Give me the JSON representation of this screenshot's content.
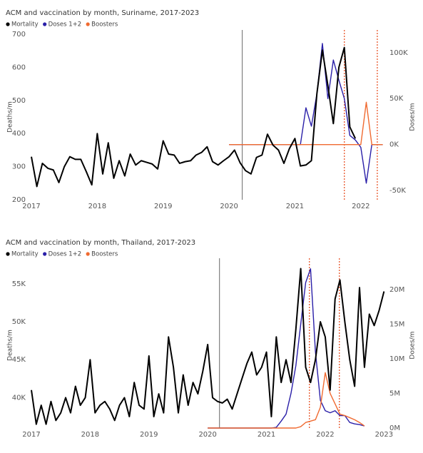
{
  "chart_data": [
    {
      "type": "line",
      "title": "ACM and vaccination by month, Suriname, 2017-2023",
      "y_label": "Deaths/m",
      "y2_label": "Doses/m",
      "xlim": [
        2017,
        2022.37
      ],
      "xticks": [
        2017,
        2018,
        2019,
        2020,
        2021,
        2022
      ],
      "ylim": [
        200,
        700
      ],
      "yticks": [
        200,
        300,
        400,
        500,
        600,
        700
      ],
      "y2lim": [
        -60000,
        120000
      ],
      "y2ticks": [
        {
          "value": 100000,
          "label": "100K"
        },
        {
          "value": 50000,
          "label": "50K"
        },
        {
          "value": 0,
          "label": "0K"
        },
        {
          "value": -50000,
          "label": "-50K"
        }
      ],
      "grid": false,
      "vlines": [
        {
          "x": 2020.2,
          "color": "#808080",
          "style": "solid"
        },
        {
          "x": 2021.75,
          "color": "#e8552a",
          "style": "dotted"
        },
        {
          "x": 2022.25,
          "color": "#e8552a",
          "style": "dotted"
        }
      ],
      "x": [
        2017,
        2017.083,
        2017.167,
        2017.25,
        2017.333,
        2017.417,
        2017.5,
        2017.583,
        2017.667,
        2017.75,
        2017.833,
        2017.917,
        2018,
        2018.083,
        2018.167,
        2018.25,
        2018.333,
        2018.417,
        2018.5,
        2018.583,
        2018.667,
        2018.75,
        2018.833,
        2018.917,
        2019,
        2019.083,
        2019.167,
        2019.25,
        2019.333,
        2019.417,
        2019.5,
        2019.583,
        2019.667,
        2019.75,
        2019.833,
        2019.917,
        2020,
        2020.083,
        2020.167,
        2020.25,
        2020.333,
        2020.417,
        2020.5,
        2020.583,
        2020.667,
        2020.75,
        2020.833,
        2020.917,
        2021,
        2021.083,
        2021.167,
        2021.25,
        2021.333,
        2021.417,
        2021.5,
        2021.583,
        2021.667,
        2021.75,
        2021.833,
        2021.917,
        2022,
        2022.083,
        2022.167,
        2022.25,
        2022.333
      ],
      "series": [
        {
          "name": "Mortality",
          "color": "#000000",
          "axis": "y",
          "values": [
            330,
            240,
            310,
            295,
            290,
            252,
            300,
            330,
            322,
            322,
            285,
            245,
            400,
            278,
            372,
            265,
            318,
            272,
            338,
            305,
            318,
            313,
            308,
            293,
            378,
            338,
            335,
            310,
            315,
            318,
            335,
            343,
            360,
            315,
            305,
            318,
            330,
            350,
            312,
            288,
            278,
            328,
            335,
            398,
            365,
            350,
            310,
            355,
            385,
            302,
            305,
            318,
            520,
            652,
            545,
            430,
            600,
            660,
            420,
            385,
            null,
            null,
            null,
            null,
            null
          ]
        },
        {
          "name": "Doses 1+2",
          "color": "#2a1fa8",
          "axis": "y2",
          "values": [
            null,
            null,
            null,
            null,
            null,
            null,
            null,
            null,
            null,
            null,
            null,
            null,
            null,
            null,
            null,
            null,
            null,
            null,
            null,
            null,
            null,
            null,
            null,
            null,
            null,
            null,
            null,
            null,
            null,
            null,
            null,
            null,
            null,
            null,
            null,
            null,
            0,
            0,
            0,
            0,
            0,
            0,
            0,
            0,
            0,
            0,
            0,
            0,
            0,
            0,
            40000,
            20000,
            55000,
            110000,
            50000,
            92000,
            70000,
            50000,
            10000,
            5000,
            -3000,
            -42000,
            0,
            0,
            0
          ]
        },
        {
          "name": "Boosters",
          "color": "#f06a30",
          "axis": "y2",
          "values": [
            null,
            null,
            null,
            null,
            null,
            null,
            null,
            null,
            null,
            null,
            null,
            null,
            null,
            null,
            null,
            null,
            null,
            null,
            null,
            null,
            null,
            null,
            null,
            null,
            null,
            null,
            null,
            null,
            null,
            null,
            null,
            null,
            null,
            null,
            null,
            null,
            0,
            0,
            0,
            0,
            0,
            0,
            0,
            0,
            0,
            0,
            0,
            0,
            0,
            0,
            0,
            0,
            0,
            0,
            0,
            0,
            0,
            0,
            0,
            0,
            0,
            46000,
            0,
            0,
            0
          ]
        }
      ]
    },
    {
      "type": "line",
      "title": "ACM and vaccination by month, Thailand, 2017-2023",
      "y_label": "Deaths/m",
      "y2_label": "Doses/m",
      "xlim": [
        2017,
        2023.02
      ],
      "xticks": [
        2017,
        2018,
        2019,
        2020,
        2021,
        2022,
        2023
      ],
      "ylim": [
        36000,
        57800
      ],
      "yticks": [
        {
          "value": 40000,
          "label": "40K"
        },
        {
          "value": 45000,
          "label": "45K"
        },
        {
          "value": 50000,
          "label": "50K"
        },
        {
          "value": 55000,
          "label": "55K"
        }
      ],
      "y2lim": [
        0,
        23900000
      ],
      "y2ticks": [
        {
          "value": 0,
          "label": "0M"
        },
        {
          "value": 5000000,
          "label": "5M"
        },
        {
          "value": 10000000,
          "label": "10M"
        },
        {
          "value": 15000000,
          "label": "15M"
        },
        {
          "value": 20000000,
          "label": "20M"
        }
      ],
      "grid": false,
      "vlines": [
        {
          "x": 2020.2,
          "color": "#808080",
          "style": "solid"
        },
        {
          "x": 2021.73,
          "color": "#e8552a",
          "style": "dotted"
        },
        {
          "x": 2022.24,
          "color": "#e8552a",
          "style": "dotted"
        }
      ],
      "x": [
        2017,
        2017.083,
        2017.167,
        2017.25,
        2017.333,
        2017.417,
        2017.5,
        2017.583,
        2017.667,
        2017.75,
        2017.833,
        2017.917,
        2018,
        2018.083,
        2018.167,
        2018.25,
        2018.333,
        2018.417,
        2018.5,
        2018.583,
        2018.667,
        2018.75,
        2018.833,
        2018.917,
        2019,
        2019.083,
        2019.167,
        2019.25,
        2019.333,
        2019.417,
        2019.5,
        2019.583,
        2019.667,
        2019.75,
        2019.833,
        2019.917,
        2020,
        2020.083,
        2020.167,
        2020.25,
        2020.333,
        2020.417,
        2020.5,
        2020.583,
        2020.667,
        2020.75,
        2020.833,
        2020.917,
        2021,
        2021.083,
        2021.167,
        2021.25,
        2021.333,
        2021.417,
        2021.5,
        2021.583,
        2021.667,
        2021.75,
        2021.833,
        2021.917,
        2022,
        2022.083,
        2022.167,
        2022.25,
        2022.333,
        2022.417,
        2022.5,
        2022.583,
        2022.667,
        2022.75,
        2022.833,
        2022.917,
        2023
      ],
      "series": [
        {
          "name": "Mortality",
          "color": "#000000",
          "axis": "y",
          "values": [
            41000,
            36500,
            39000,
            36500,
            39500,
            37000,
            38000,
            40000,
            38000,
            41500,
            39000,
            40000,
            45000,
            38000,
            39000,
            39500,
            38500,
            37000,
            39000,
            40000,
            37500,
            42000,
            39000,
            38500,
            45500,
            37500,
            40500,
            38000,
            48000,
            44000,
            38000,
            43000,
            39000,
            42000,
            40500,
            43500,
            47000,
            40000,
            39500,
            39300,
            39800,
            38500,
            40500,
            42500,
            44500,
            46000,
            43000,
            44000,
            46000,
            37500,
            48000,
            42000,
            45000,
            42000,
            49000,
            57000,
            44000,
            42000,
            45000,
            50000,
            48000,
            41000,
            53000,
            55500,
            50000,
            45000,
            41500,
            54500,
            44000,
            51000,
            49500,
            51500,
            54000
          ]
        },
        {
          "name": "Doses 1+2",
          "color": "#2a1fa8",
          "axis": "y2",
          "values": [
            null,
            null,
            null,
            null,
            null,
            null,
            null,
            null,
            null,
            null,
            null,
            null,
            null,
            null,
            null,
            null,
            null,
            null,
            null,
            null,
            null,
            null,
            null,
            null,
            null,
            null,
            null,
            null,
            null,
            null,
            null,
            null,
            null,
            null,
            null,
            null,
            0,
            0,
            0,
            0,
            0,
            0,
            0,
            0,
            0,
            0,
            0,
            0,
            0,
            0,
            100000,
            1000000,
            2000000,
            5000000,
            9000000,
            15000000,
            21000000,
            23000000,
            11000000,
            4000000,
            2500000,
            2200000,
            2500000,
            1800000,
            1800000,
            800000,
            600000,
            500000,
            300000,
            null,
            null,
            null,
            null
          ]
        },
        {
          "name": "Boosters",
          "color": "#f06a30",
          "axis": "y2",
          "values": [
            null,
            null,
            null,
            null,
            null,
            null,
            null,
            null,
            null,
            null,
            null,
            null,
            null,
            null,
            null,
            null,
            null,
            null,
            null,
            null,
            null,
            null,
            null,
            null,
            null,
            null,
            null,
            null,
            null,
            null,
            null,
            null,
            null,
            null,
            null,
            null,
            0,
            0,
            0,
            0,
            0,
            0,
            0,
            0,
            0,
            0,
            0,
            0,
            0,
            0,
            0,
            0,
            0,
            0,
            0,
            200000,
            800000,
            1000000,
            1200000,
            3000000,
            8000000,
            5000000,
            3500000,
            2000000,
            1800000,
            1500000,
            1200000,
            800000,
            300000,
            null,
            null,
            null,
            null
          ]
        }
      ]
    }
  ]
}
